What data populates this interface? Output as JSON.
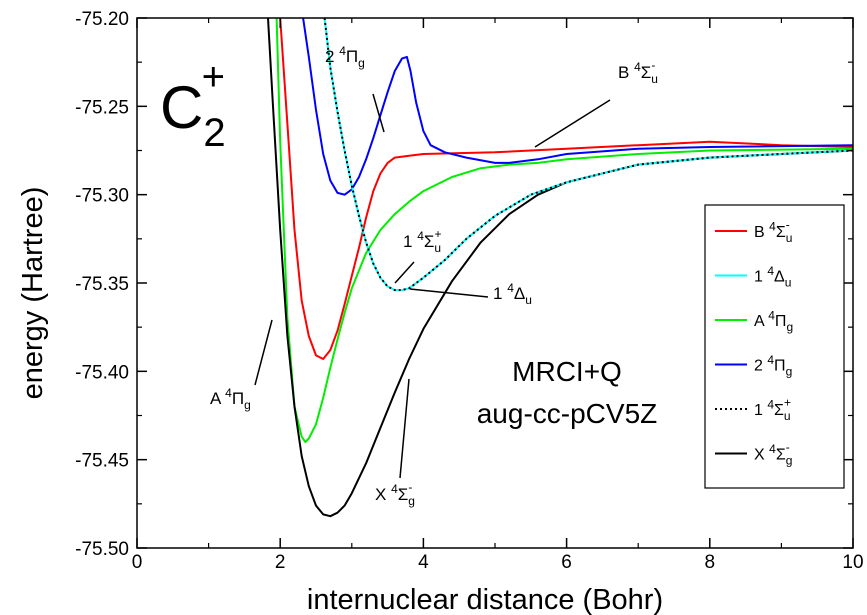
{
  "chart_data": {
    "type": "line",
    "xlabel": "internuclear distance (Bohr)",
    "ylabel": "energy (Hartree)",
    "xlim": [
      0,
      10
    ],
    "ylim": [
      -75.5,
      -75.2
    ],
    "x_ticks": [
      "0",
      "2",
      "4",
      "6",
      "8",
      "10"
    ],
    "y_ticks": [
      "-75.50",
      "-75.45",
      "-75.40",
      "-75.35",
      "-75.30",
      "-75.25",
      "-75.20"
    ],
    "molecule": {
      "base": "C",
      "sub": "2",
      "sup": "+"
    },
    "method": [
      "MRCI+Q",
      "aug-cc-pCV5Z"
    ],
    "series": [
      {
        "name": "B 4Σu-",
        "label": {
          "pre": "B ",
          "sup": "4",
          "sym": "Σ",
          "sub": "u",
          "supr": "-"
        },
        "color": "#ff0000",
        "style": "solid",
        "points": [
          [
            2.0,
            -75.2
          ],
          [
            2.1,
            -75.26
          ],
          [
            2.2,
            -75.32
          ],
          [
            2.3,
            -75.36
          ],
          [
            2.4,
            -75.38
          ],
          [
            2.5,
            -75.391
          ],
          [
            2.6,
            -75.393
          ],
          [
            2.7,
            -75.388
          ],
          [
            2.8,
            -75.377
          ],
          [
            2.9,
            -75.362
          ],
          [
            3.0,
            -75.346
          ],
          [
            3.1,
            -75.33
          ],
          [
            3.2,
            -75.313
          ],
          [
            3.3,
            -75.298
          ],
          [
            3.4,
            -75.288
          ],
          [
            3.5,
            -75.282
          ],
          [
            3.6,
            -75.279
          ],
          [
            3.8,
            -75.278
          ],
          [
            4.0,
            -75.277
          ],
          [
            5.0,
            -75.276
          ],
          [
            6.0,
            -75.274
          ],
          [
            7.0,
            -75.272
          ],
          [
            8.0,
            -75.27
          ],
          [
            9.0,
            -75.272
          ],
          [
            10.0,
            -75.273
          ]
        ]
      },
      {
        "name": "1 4Δu",
        "label": {
          "pre": "1 ",
          "sup": "4",
          "sym": "Δ",
          "sub": "u",
          "supr": ""
        },
        "color": "#00ffff",
        "style": "solid",
        "points": [
          [
            2.62,
            -75.2
          ],
          [
            2.7,
            -75.228
          ],
          [
            2.8,
            -75.253
          ],
          [
            2.9,
            -75.275
          ],
          [
            3.0,
            -75.295
          ],
          [
            3.1,
            -75.312
          ],
          [
            3.2,
            -75.327
          ],
          [
            3.3,
            -75.339
          ],
          [
            3.4,
            -75.347
          ],
          [
            3.5,
            -75.352
          ],
          [
            3.6,
            -75.354
          ],
          [
            3.7,
            -75.354
          ],
          [
            3.8,
            -75.353
          ],
          [
            4.0,
            -75.347
          ],
          [
            4.3,
            -75.337
          ],
          [
            4.6,
            -75.325
          ],
          [
            5.0,
            -75.312
          ],
          [
            5.5,
            -75.3
          ],
          [
            6.0,
            -75.293
          ],
          [
            7.0,
            -75.283
          ],
          [
            8.0,
            -75.279
          ],
          [
            9.0,
            -75.277
          ],
          [
            10.0,
            -75.275
          ]
        ]
      },
      {
        "name": "A 4Πg",
        "label": {
          "pre": "A ",
          "sup": "4",
          "sym": "Π",
          "sub": "g",
          "supr": ""
        },
        "color": "#00ee00",
        "style": "solid",
        "points": [
          [
            1.95,
            -75.2
          ],
          [
            2.0,
            -75.27
          ],
          [
            2.1,
            -75.37
          ],
          [
            2.2,
            -75.42
          ],
          [
            2.3,
            -75.437
          ],
          [
            2.35,
            -75.44
          ],
          [
            2.4,
            -75.438
          ],
          [
            2.5,
            -75.43
          ],
          [
            2.6,
            -75.415
          ],
          [
            2.7,
            -75.398
          ],
          [
            2.8,
            -75.382
          ],
          [
            2.9,
            -75.367
          ],
          [
            3.0,
            -75.353
          ],
          [
            3.2,
            -75.333
          ],
          [
            3.4,
            -75.32
          ],
          [
            3.6,
            -75.311
          ],
          [
            3.8,
            -75.304
          ],
          [
            4.0,
            -75.298
          ],
          [
            4.4,
            -75.29
          ],
          [
            4.8,
            -75.285
          ],
          [
            5.2,
            -75.283
          ],
          [
            5.6,
            -75.282
          ],
          [
            6.0,
            -75.28
          ],
          [
            7.0,
            -75.277
          ],
          [
            8.0,
            -75.275
          ],
          [
            10.0,
            -75.274
          ]
        ]
      },
      {
        "name": "2 4Πg",
        "label": {
          "pre": "2 ",
          "sup": "4",
          "sym": "Π",
          "sub": "g",
          "supr": ""
        },
        "color": "#0000ff",
        "style": "solid",
        "points": [
          [
            2.32,
            -75.2
          ],
          [
            2.4,
            -75.222
          ],
          [
            2.5,
            -75.252
          ],
          [
            2.6,
            -75.277
          ],
          [
            2.7,
            -75.292
          ],
          [
            2.8,
            -75.299
          ],
          [
            2.9,
            -75.3
          ],
          [
            3.0,
            -75.297
          ],
          [
            3.1,
            -75.29
          ],
          [
            3.2,
            -75.28
          ],
          [
            3.3,
            -75.268
          ],
          [
            3.4,
            -75.255
          ],
          [
            3.5,
            -75.242
          ],
          [
            3.6,
            -75.23
          ],
          [
            3.7,
            -75.223
          ],
          [
            3.77,
            -75.222
          ],
          [
            3.82,
            -75.23
          ],
          [
            3.9,
            -75.248
          ],
          [
            4.0,
            -75.264
          ],
          [
            4.1,
            -75.272
          ],
          [
            4.3,
            -75.276
          ],
          [
            4.6,
            -75.279
          ],
          [
            5.0,
            -75.282
          ],
          [
            5.2,
            -75.282
          ],
          [
            5.6,
            -75.28
          ],
          [
            6.0,
            -75.277
          ],
          [
            7.0,
            -75.274
          ],
          [
            8.0,
            -75.273
          ],
          [
            10.0,
            -75.272
          ]
        ]
      },
      {
        "name": "1 4Σu+",
        "label": {
          "pre": "1 ",
          "sup": "4",
          "sym": "Σ",
          "sub": "u",
          "supr": "+"
        },
        "color": "#000000",
        "style": "dotted",
        "points": [
          [
            2.62,
            -75.2
          ],
          [
            2.7,
            -75.228
          ],
          [
            2.8,
            -75.253
          ],
          [
            2.9,
            -75.275
          ],
          [
            3.0,
            -75.295
          ],
          [
            3.1,
            -75.312
          ],
          [
            3.2,
            -75.327
          ],
          [
            3.3,
            -75.339
          ],
          [
            3.4,
            -75.347
          ],
          [
            3.5,
            -75.352
          ],
          [
            3.6,
            -75.354
          ],
          [
            3.7,
            -75.354
          ],
          [
            3.8,
            -75.353
          ],
          [
            4.0,
            -75.347
          ],
          [
            4.3,
            -75.337
          ],
          [
            4.6,
            -75.325
          ],
          [
            5.0,
            -75.312
          ],
          [
            5.5,
            -75.3
          ],
          [
            6.0,
            -75.293
          ],
          [
            7.0,
            -75.283
          ],
          [
            8.0,
            -75.279
          ],
          [
            9.0,
            -75.277
          ],
          [
            10.0,
            -75.275
          ]
        ]
      },
      {
        "name": "X 4Σg-",
        "label": {
          "pre": "X ",
          "sup": "4",
          "sym": "Σ",
          "sub": "g",
          "supr": "-"
        },
        "color": "#000000",
        "style": "solid",
        "points": [
          [
            1.83,
            -75.2
          ],
          [
            1.9,
            -75.25
          ],
          [
            2.0,
            -75.32
          ],
          [
            2.1,
            -75.38
          ],
          [
            2.2,
            -75.42
          ],
          [
            2.3,
            -75.448
          ],
          [
            2.4,
            -75.465
          ],
          [
            2.5,
            -75.476
          ],
          [
            2.6,
            -75.481
          ],
          [
            2.7,
            -75.482
          ],
          [
            2.8,
            -75.48
          ],
          [
            2.9,
            -75.476
          ],
          [
            3.0,
            -75.469
          ],
          [
            3.2,
            -75.452
          ],
          [
            3.4,
            -75.432
          ],
          [
            3.6,
            -75.412
          ],
          [
            3.8,
            -75.393
          ],
          [
            4.0,
            -75.376
          ],
          [
            4.4,
            -75.349
          ],
          [
            4.8,
            -75.327
          ],
          [
            5.2,
            -75.311
          ],
          [
            5.6,
            -75.3
          ],
          [
            6.0,
            -75.293
          ],
          [
            7.0,
            -75.283
          ],
          [
            8.0,
            -75.279
          ],
          [
            9.0,
            -75.277
          ],
          [
            10.0,
            -75.275
          ]
        ]
      }
    ],
    "annotations": [
      {
        "id": "ann-2pi",
        "pre": "2 ",
        "sup": "4",
        "sym": "Π",
        "sub": "g",
        "supr": ""
      },
      {
        "id": "ann-b",
        "pre": "B ",
        "sup": "4",
        "sym": "Σ",
        "sub": "u",
        "supr": "-"
      },
      {
        "id": "ann-1sig",
        "pre": "1 ",
        "sup": "4",
        "sym": "Σ",
        "sub": "u",
        "supr": "+"
      },
      {
        "id": "ann-1del",
        "pre": "1 ",
        "sup": "4",
        "sym": "Δ",
        "sub": "u",
        "supr": ""
      },
      {
        "id": "ann-a",
        "pre": "A ",
        "sup": "4",
        "sym": "Π",
        "sub": "g",
        "supr": ""
      },
      {
        "id": "ann-x",
        "pre": "X ",
        "sup": "4",
        "sym": "Σ",
        "sub": "g",
        "supr": "-"
      }
    ],
    "grid": false,
    "legend": "right"
  }
}
